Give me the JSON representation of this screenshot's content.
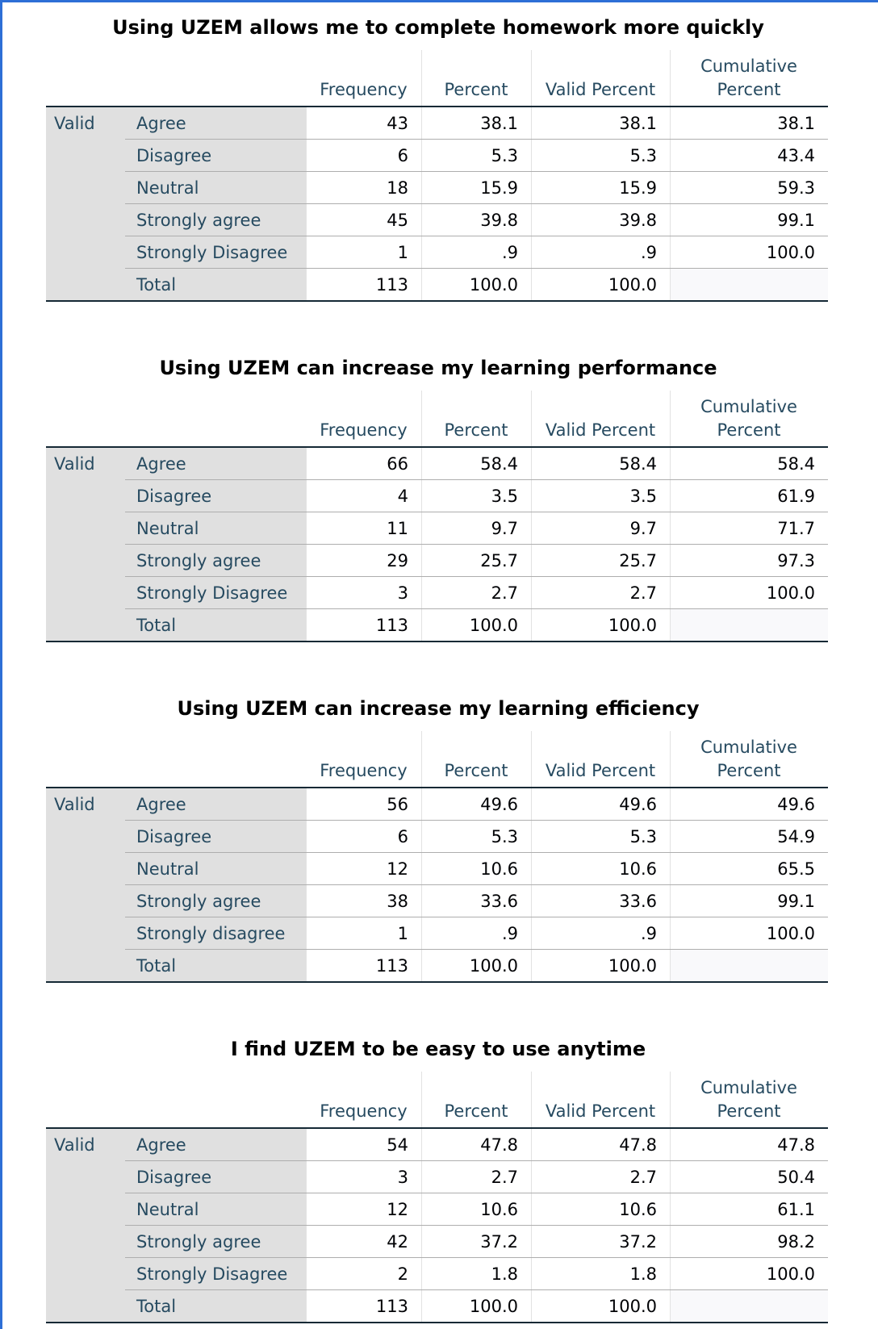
{
  "tables": [
    {
      "title": "Using UZEM allows me to complete homework more quickly",
      "columns": [
        "Frequency",
        "Percent",
        "Valid Percent",
        "Cumulative Percent"
      ],
      "group": "Valid",
      "rows": [
        {
          "label": "Agree",
          "cells": [
            "43",
            "38.1",
            "38.1",
            "38.1"
          ]
        },
        {
          "label": "Disagree",
          "cells": [
            "6",
            "5.3",
            "5.3",
            "43.4"
          ]
        },
        {
          "label": "Neutral",
          "cells": [
            "18",
            "15.9",
            "15.9",
            "59.3"
          ]
        },
        {
          "label": "Strongly agree",
          "cells": [
            "45",
            "39.8",
            "39.8",
            "99.1"
          ]
        },
        {
          "label": "Strongly Disagree",
          "cells": [
            "1",
            ".9",
            ".9",
            "100.0"
          ]
        },
        {
          "label": "Total",
          "cells": [
            "113",
            "100.0",
            "100.0"
          ]
        }
      ]
    },
    {
      "title": "Using UZEM can increase my learning performance",
      "columns": [
        "Frequency",
        "Percent",
        "Valid Percent",
        "Cumulative Percent"
      ],
      "group": "Valid",
      "rows": [
        {
          "label": "Agree",
          "cells": [
            "66",
            "58.4",
            "58.4",
            "58.4"
          ]
        },
        {
          "label": "Disagree",
          "cells": [
            "4",
            "3.5",
            "3.5",
            "61.9"
          ]
        },
        {
          "label": "Neutral",
          "cells": [
            "11",
            "9.7",
            "9.7",
            "71.7"
          ]
        },
        {
          "label": "Strongly agree",
          "cells": [
            "29",
            "25.7",
            "25.7",
            "97.3"
          ]
        },
        {
          "label": "Strongly Disagree",
          "cells": [
            "3",
            "2.7",
            "2.7",
            "100.0"
          ]
        },
        {
          "label": "Total",
          "cells": [
            "113",
            "100.0",
            "100.0"
          ]
        }
      ]
    },
    {
      "title": "Using UZEM can increase my learning efficiency",
      "columns": [
        "Frequency",
        "Percent",
        "Valid Percent",
        "Cumulative Percent"
      ],
      "group": "Valid",
      "rows": [
        {
          "label": "Agree",
          "cells": [
            "56",
            "49.6",
            "49.6",
            "49.6"
          ]
        },
        {
          "label": "Disagree",
          "cells": [
            "6",
            "5.3",
            "5.3",
            "54.9"
          ]
        },
        {
          "label": "Neutral",
          "cells": [
            "12",
            "10.6",
            "10.6",
            "65.5"
          ]
        },
        {
          "label": "Strongly agree",
          "cells": [
            "38",
            "33.6",
            "33.6",
            "99.1"
          ]
        },
        {
          "label": "Strongly disagree",
          "cells": [
            "1",
            ".9",
            ".9",
            "100.0"
          ]
        },
        {
          "label": "Total",
          "cells": [
            "113",
            "100.0",
            "100.0"
          ]
        }
      ]
    },
    {
      "title": "I find UZEM to be easy to use anytime",
      "columns": [
        "Frequency",
        "Percent",
        "Valid Percent",
        "Cumulative Percent"
      ],
      "group": "Valid",
      "rows": [
        {
          "label": "Agree",
          "cells": [
            "54",
            "47.8",
            "47.8",
            "47.8"
          ]
        },
        {
          "label": "Disagree",
          "cells": [
            "3",
            "2.7",
            "2.7",
            "50.4"
          ]
        },
        {
          "label": "Neutral",
          "cells": [
            "12",
            "10.6",
            "10.6",
            "61.1"
          ]
        },
        {
          "label": "Strongly agree",
          "cells": [
            "42",
            "37.2",
            "37.2",
            "98.2"
          ]
        },
        {
          "label": "Strongly Disagree",
          "cells": [
            "2",
            "1.8",
            "1.8",
            "100.0"
          ]
        },
        {
          "label": "Total",
          "cells": [
            "113",
            "100.0",
            "100.0"
          ]
        }
      ]
    }
  ]
}
